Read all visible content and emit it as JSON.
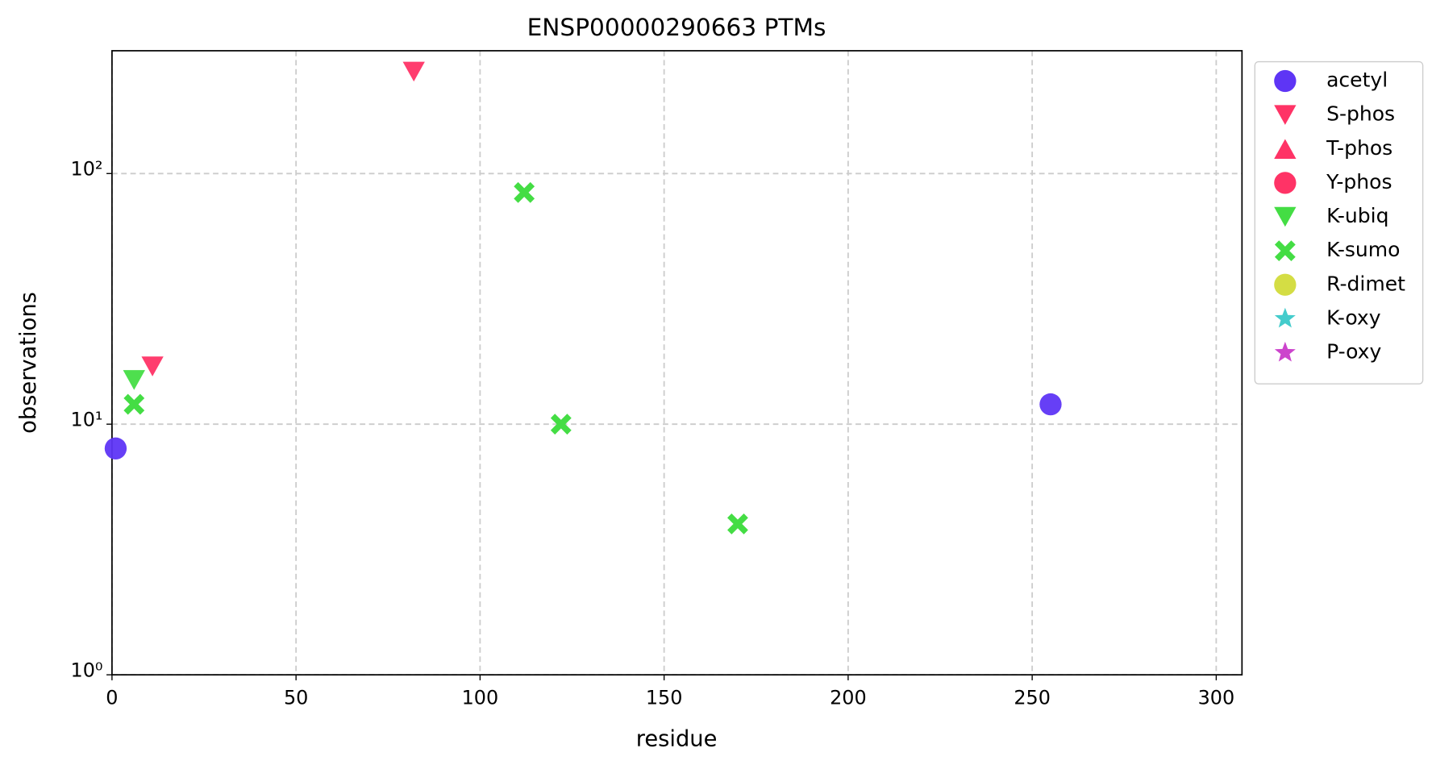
{
  "chart_data": {
    "type": "scatter",
    "title": "ENSP00000290663 PTMs",
    "x_label": "residue",
    "y_label": "observations",
    "xlim": [
      0,
      307
    ],
    "xticks": [
      0,
      50,
      100,
      150,
      200,
      250,
      300
    ],
    "ylim": [
      1,
      309
    ],
    "y_scale": "log",
    "yticks": [
      {
        "value": 1,
        "label": "10⁰"
      },
      {
        "value": 10,
        "label": "10¹"
      },
      {
        "value": 100,
        "label": "10²"
      }
    ],
    "grid": true,
    "legend": "outside right",
    "series": [
      {
        "name": "acetyl",
        "color": "#5e35f5",
        "marker": "circle",
        "x": [
          1,
          255
        ],
        "values": [
          8,
          12
        ]
      },
      {
        "name": "S-phos",
        "color": "#ff3366",
        "marker": "triangle-down",
        "x": [
          82,
          11
        ],
        "values": [
          255,
          17
        ]
      },
      {
        "name": "T-phos",
        "color": "#ff3366",
        "marker": "triangle-up",
        "x": [],
        "values": []
      },
      {
        "name": "Y-phos",
        "color": "#ff3366",
        "marker": "circle",
        "x": [],
        "values": []
      },
      {
        "name": "K-ubiq",
        "color": "#44dd44",
        "marker": "triangle-down",
        "x": [
          6
        ],
        "values": [
          15
        ]
      },
      {
        "name": "K-sumo",
        "color": "#44dd44",
        "marker": "x",
        "x": [
          6,
          112,
          122,
          170
        ],
        "values": [
          12,
          84,
          10,
          4
        ]
      },
      {
        "name": "R-dimet",
        "color": "#d4dd44",
        "marker": "circle",
        "x": [],
        "values": []
      },
      {
        "name": "K-oxy",
        "color": "#44cccc",
        "marker": "star",
        "x": [],
        "values": []
      },
      {
        "name": "P-oxy",
        "color": "#cc44cc",
        "marker": "star",
        "x": [],
        "values": []
      }
    ]
  }
}
